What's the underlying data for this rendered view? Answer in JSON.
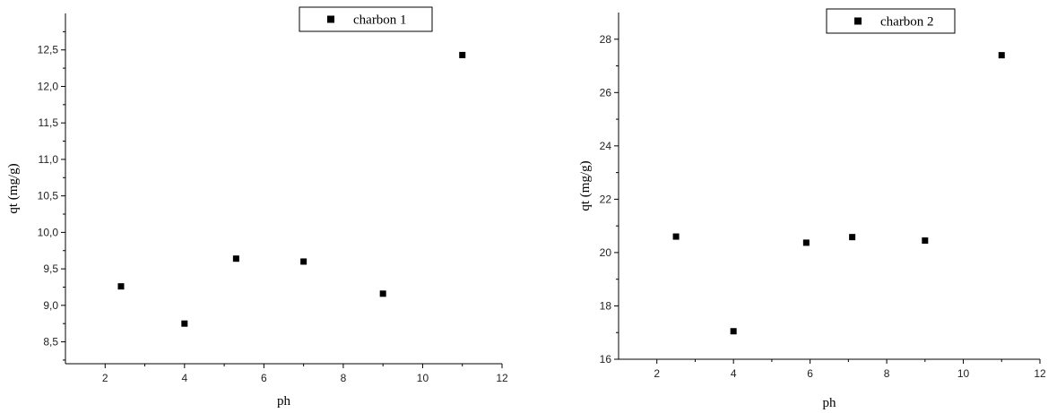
{
  "chart_data": [
    {
      "type": "scatter",
      "xlabel": "ph",
      "ylabel": "qt (mg/g)",
      "xlim": [
        1,
        12
      ],
      "ylim": [
        8.2,
        13.0
      ],
      "x_ticks": [
        "2",
        "4",
        "6",
        "8",
        "10",
        "12"
      ],
      "y_ticks": [
        "8,5",
        "9,0",
        "9,5",
        "10,0",
        "10,5",
        "11,0",
        "11,5",
        "12,0",
        "12,5"
      ],
      "legend_position": "top-right",
      "series": [
        {
          "name": "charbon 1",
          "color": "#000000",
          "marker": "square",
          "x": [
            2.4,
            4.0,
            5.3,
            7.0,
            9.0,
            11.0
          ],
          "y": [
            9.26,
            8.75,
            9.64,
            9.6,
            9.16,
            12.43
          ]
        }
      ]
    },
    {
      "type": "scatter",
      "xlabel": "ph",
      "ylabel": "qt (mg/g)",
      "xlim": [
        1,
        12
      ],
      "ylim": [
        16,
        29
      ],
      "x_ticks": [
        "2",
        "4",
        "6",
        "8",
        "10",
        "12"
      ],
      "y_ticks": [
        "16",
        "18",
        "20",
        "22",
        "24",
        "26",
        "28"
      ],
      "legend_position": "top-right",
      "series": [
        {
          "name": "charbon 2",
          "color": "#000000",
          "marker": "square",
          "x": [
            2.5,
            4.0,
            5.9,
            7.1,
            9.0,
            11.0
          ],
          "y": [
            20.6,
            17.05,
            20.37,
            20.58,
            20.45,
            27.4
          ]
        }
      ]
    }
  ]
}
